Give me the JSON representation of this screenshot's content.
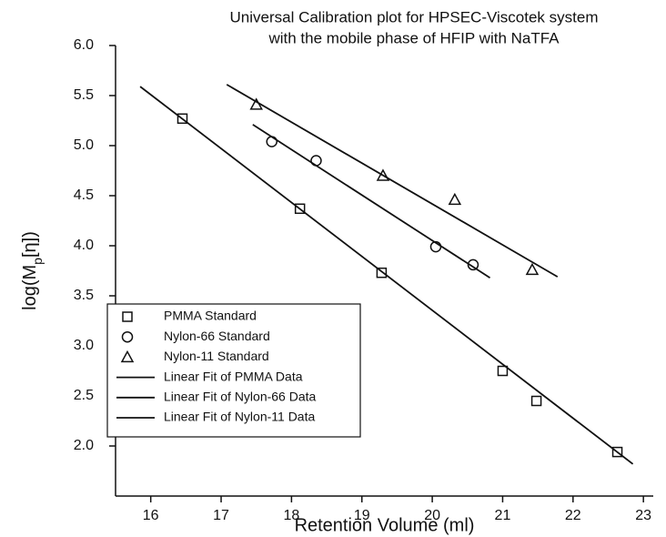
{
  "chart_data": {
    "type": "scatter",
    "title": [
      "Universal Calibration plot for HPSEC-Viscotek system",
      "with the mobile phase of HFIP with NaTFA"
    ],
    "x_label": "Retention Volume (ml)",
    "y_label": [
      "log(M",
      "p",
      "[η])"
    ],
    "xlim": [
      15.5,
      23.14
    ],
    "ylim": [
      1.5,
      6.0
    ],
    "xticks": [
      16,
      17,
      18,
      19,
      20,
      21,
      22,
      23
    ],
    "yticks": [
      {
        "value": 2.0,
        "label": "2.0"
      },
      {
        "value": 2.5,
        "label": "2.5"
      },
      {
        "value": 3.0,
        "label": "3.0"
      },
      {
        "value": 3.5,
        "label": "3.5"
      },
      {
        "value": 4.0,
        "label": "4.0"
      },
      {
        "value": 4.5,
        "label": "4.5"
      },
      {
        "value": 5.0,
        "label": "5.0"
      },
      {
        "value": 5.5,
        "label": "5.5"
      },
      {
        "value": 6.0,
        "label": "6.0"
      }
    ],
    "legend": "lower left",
    "series": [
      {
        "name": "PMMA Standard",
        "mode": "markers",
        "marker": "square",
        "color": "#111111",
        "x": [
          16.45,
          18.12,
          19.28,
          21.0,
          21.48,
          22.63
        ],
        "values": [
          5.27,
          4.37,
          3.73,
          2.75,
          2.45,
          1.94
        ]
      },
      {
        "name": "Nylon-66 Standard",
        "mode": "markers",
        "marker": "circle",
        "color": "#111111",
        "x": [
          17.72,
          18.35,
          20.05,
          20.58
        ],
        "values": [
          5.04,
          4.85,
          3.99,
          3.81
        ]
      },
      {
        "name": "Nylon-11 Standard",
        "mode": "markers",
        "marker": "triangle",
        "color": "#111111",
        "x": [
          17.5,
          19.3,
          20.32,
          21.42
        ],
        "values": [
          5.41,
          4.7,
          4.46,
          3.76
        ]
      },
      {
        "name": "Linear Fit of PMMA Data",
        "mode": "line",
        "color": "#111111",
        "x": [
          15.85,
          22.85
        ],
        "values": [
          5.59,
          1.82
        ]
      },
      {
        "name": "Linear Fit of Nylon-66 Data",
        "mode": "line",
        "color": "#111111",
        "x": [
          17.45,
          20.82
        ],
        "values": [
          5.21,
          3.68
        ]
      },
      {
        "name": "Linear Fit of Nylon-11 Data",
        "mode": "line",
        "color": "#111111",
        "x": [
          17.08,
          21.78
        ],
        "values": [
          5.61,
          3.69
        ]
      }
    ]
  }
}
